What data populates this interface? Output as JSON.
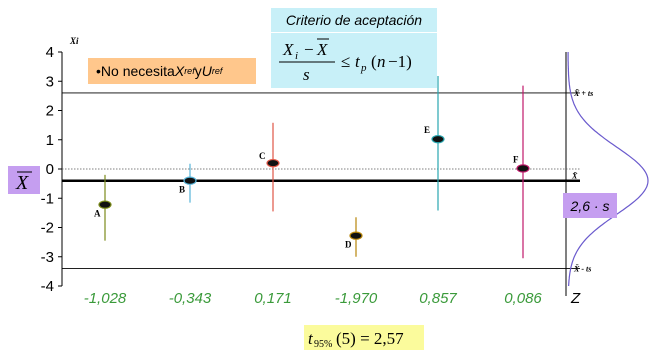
{
  "chart_data": {
    "type": "scatter",
    "y_axis_title": "Xi",
    "ylim": [
      -4,
      4
    ],
    "y_ticks": [
      "4",
      "3",
      "2",
      "1",
      "0",
      "-1",
      "-2",
      "-3",
      "-4"
    ],
    "z_axis_label": "Z",
    "mean": -0.4,
    "upper_limit": 2.6,
    "lower_limit": -3.4,
    "points": [
      {
        "label": "A",
        "value": -1.22,
        "interval": [
          -2.45,
          -0.2
        ],
        "z": "-1,028",
        "color": "#7a8a1a"
      },
      {
        "label": "B",
        "value": -0.4,
        "interval": [
          -1.15,
          0.18
        ],
        "z": "-0,343",
        "color": "#56b3d8"
      },
      {
        "label": "C",
        "value": 0.2,
        "interval": [
          -1.45,
          1.58
        ],
        "z": "0,171",
        "color": "#e05545"
      },
      {
        "label": "D",
        "value": -2.28,
        "interval": [
          -3.0,
          -1.65
        ],
        "z": "-1,970",
        "color": "#b8860b"
      },
      {
        "label": "E",
        "value": 1.02,
        "interval": [
          -1.42,
          3.18
        ],
        "z": "0,857",
        "color": "#2aa6b0"
      },
      {
        "label": "F",
        "value": 0.02,
        "interval": [
          -3.05,
          2.85
        ],
        "z": "0,086",
        "color": "#c0186a"
      }
    ]
  },
  "title_box": {
    "text": "Criterio de aceptación"
  },
  "note_box": {
    "bullet": "•No necesita ",
    "x_sym": "X",
    "x_sub": "ref",
    "and": " y ",
    "u_sym": "U",
    "u_sub": "ref"
  },
  "right_labels": {
    "upper": "X̄ + ts",
    "mean": "X̄",
    "lower": "X̄ - ts"
  },
  "ts_box": {
    "text": "2,6 · s"
  },
  "t95": {
    "text": "t95%(5) = 2,57"
  }
}
